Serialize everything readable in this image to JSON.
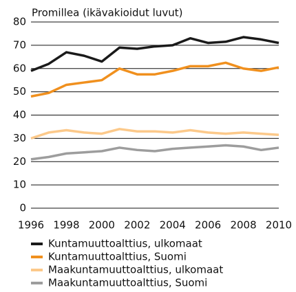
{
  "chart_data": {
    "type": "line",
    "title": "Promillea (ikävakioidut luvut)",
    "x": [
      1996,
      1997,
      1998,
      1999,
      2000,
      2001,
      2002,
      2003,
      2004,
      2005,
      2006,
      2007,
      2008,
      2009,
      2010
    ],
    "xlim": [
      1996,
      2010
    ],
    "xticks": [
      1996,
      1998,
      2000,
      2002,
      2004,
      2006,
      2008,
      2010
    ],
    "ylim": [
      0,
      80
    ],
    "yticks": [
      0,
      10,
      20,
      30,
      40,
      50,
      60,
      70,
      80
    ],
    "grid": true,
    "series": [
      {
        "name": "Kuntamuuttoalttius, ulkomaat",
        "color": "#1a1a1a",
        "values": [
          59,
          62,
          67,
          65.5,
          63,
          69,
          68.5,
          69.5,
          70,
          73,
          71,
          71.5,
          73.5,
          72.5,
          71
        ]
      },
      {
        "name": "Kuntamuuttoalttius, Suomi",
        "color": "#f0901e",
        "values": [
          48,
          49.5,
          53,
          54,
          55,
          60,
          57.5,
          57.5,
          59,
          61,
          61,
          62.5,
          60,
          59,
          60.5
        ]
      },
      {
        "name": "Maakuntamuuttoalttius, ulkomaat",
        "color": "#fcc98a",
        "values": [
          30,
          32.5,
          33.5,
          32.5,
          32,
          34,
          33,
          33,
          32.5,
          33.5,
          32.5,
          32,
          32.5,
          32,
          31.5
        ]
      },
      {
        "name": "Maakuntamuuttoalttius, Suomi",
        "color": "#9d9d9d",
        "values": [
          21,
          22,
          23.5,
          24,
          24.5,
          26,
          25,
          24.5,
          25.5,
          26,
          26.5,
          27,
          26.5,
          25,
          26
        ]
      }
    ]
  }
}
